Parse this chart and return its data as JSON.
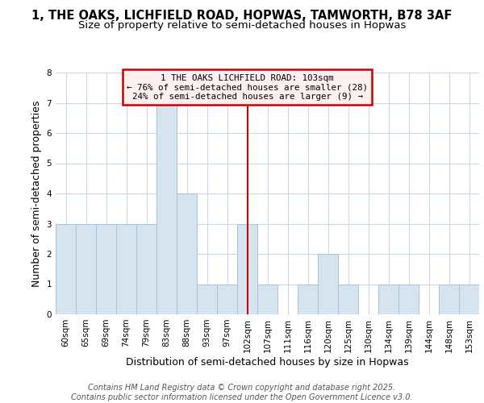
{
  "title_line1": "1, THE OAKS, LICHFIELD ROAD, HOPWAS, TAMWORTH, B78 3AF",
  "title_line2": "Size of property relative to semi-detached houses in Hopwas",
  "categories": [
    "60sqm",
    "65sqm",
    "69sqm",
    "74sqm",
    "79sqm",
    "83sqm",
    "88sqm",
    "93sqm",
    "97sqm",
    "102sqm",
    "107sqm",
    "111sqm",
    "116sqm",
    "120sqm",
    "125sqm",
    "130sqm",
    "134sqm",
    "139sqm",
    "144sqm",
    "148sqm",
    "153sqm"
  ],
  "values": [
    3,
    3,
    3,
    3,
    3,
    7,
    4,
    1,
    1,
    3,
    1,
    0,
    1,
    2,
    1,
    0,
    1,
    1,
    0,
    1,
    1
  ],
  "bar_color": "#d6e4f0",
  "bar_edge_color": "#a8c4d8",
  "highlight_index": 9,
  "highlight_color": "#cc0000",
  "xlabel": "Distribution of semi-detached houses by size in Hopwas",
  "ylabel": "Number of semi-detached properties",
  "ylim": [
    0,
    8
  ],
  "yticks": [
    0,
    1,
    2,
    3,
    4,
    5,
    6,
    7,
    8
  ],
  "annotation_line1": "1 THE OAKS LICHFIELD ROAD: 103sqm",
  "annotation_line2": "← 76% of semi-detached houses are smaller (28)",
  "annotation_line3": "24% of semi-detached houses are larger (9) →",
  "annotation_box_facecolor": "#fff0f0",
  "annotation_border_color": "#cc0000",
  "bg_color": "#ffffff",
  "plot_bg_color": "#ffffff",
  "grid_color": "#c8d8e8",
  "footer_text": "Contains HM Land Registry data © Crown copyright and database right 2025.\nContains public sector information licensed under the Open Government Licence v3.0.",
  "title_fontsize": 10.5,
  "subtitle_fontsize": 9.5,
  "axis_label_fontsize": 9,
  "tick_fontsize": 7.5,
  "footer_fontsize": 7
}
